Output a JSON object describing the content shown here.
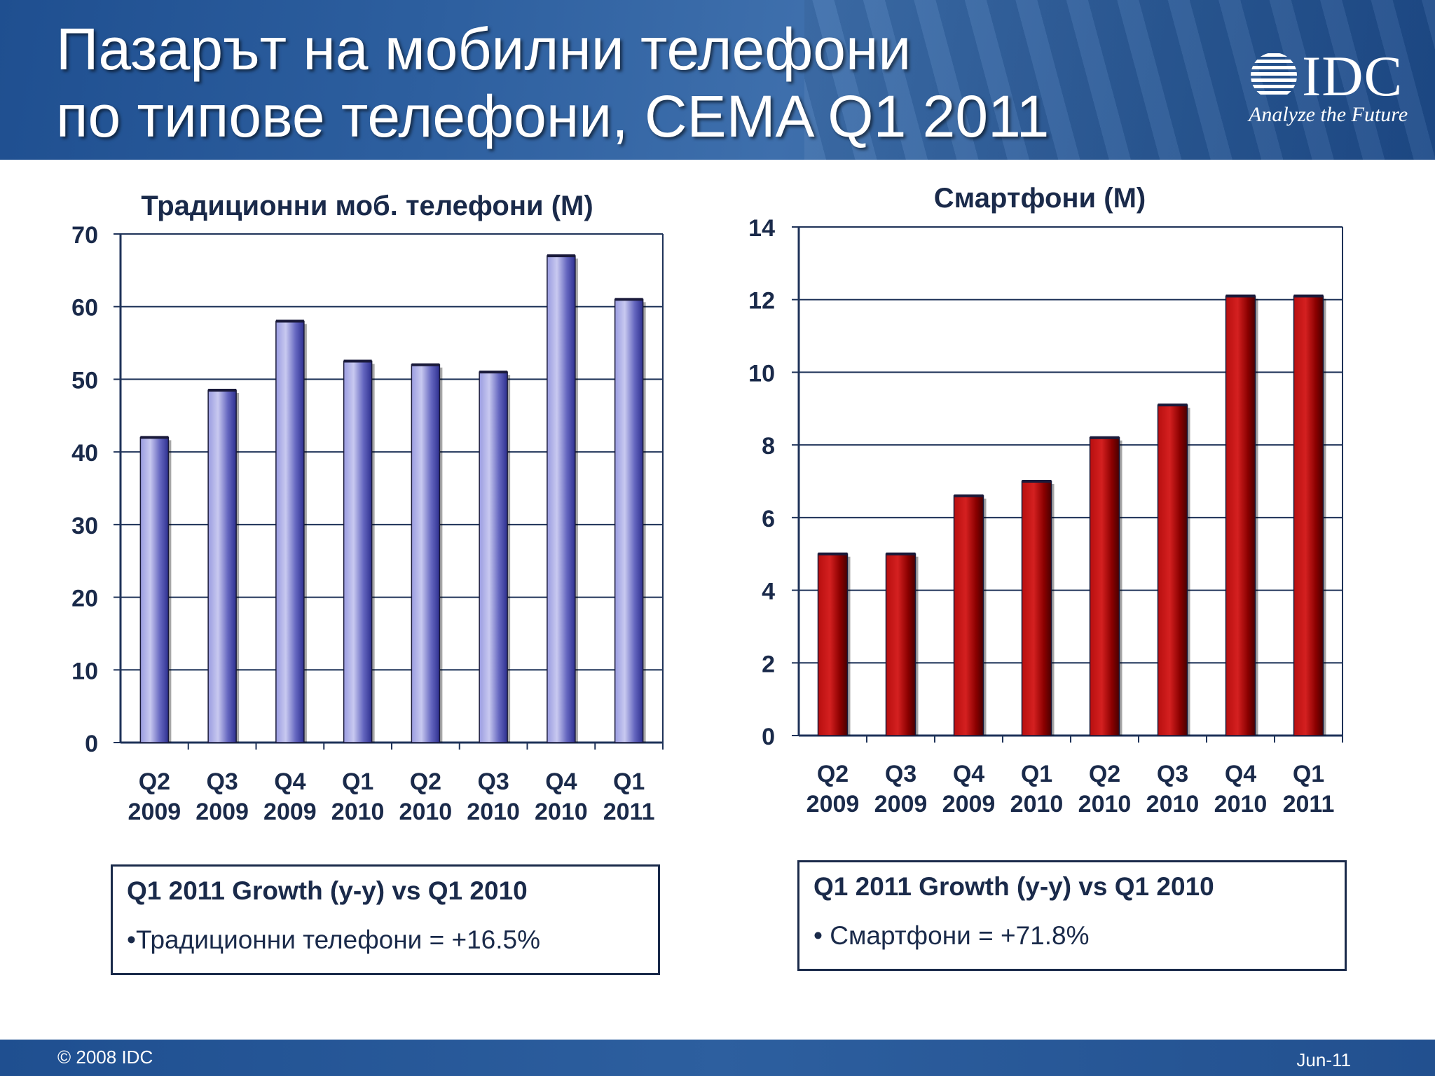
{
  "header": {
    "title_line1": "Пазарът на мобилни телефони",
    "title_line2": "по типове телефони, CEMA Q1 2011",
    "logo_text": "IDC",
    "logo_tagline": "Analyze the Future"
  },
  "chart_data": [
    {
      "type": "bar",
      "title": "Традиционни моб. телефони (M)",
      "xlabel": "",
      "ylabel": "",
      "categories": [
        "Q2 2009",
        "Q3 2009",
        "Q4 2009",
        "Q1 2010",
        "Q2 2010",
        "Q3 2010",
        "Q4 2010",
        "Q1 2011"
      ],
      "values": [
        42,
        48.5,
        58,
        52.5,
        52,
        51,
        67,
        61
      ],
      "ylim": [
        0,
        70
      ],
      "yticks": [
        0,
        10,
        20,
        30,
        40,
        50,
        60,
        70
      ],
      "grid": true,
      "color": "#6a6cc4"
    },
    {
      "type": "bar",
      "title": "Смартфони (M)",
      "xlabel": "",
      "ylabel": "",
      "categories": [
        "Q2 2009",
        "Q3 2009",
        "Q4 2009",
        "Q1 2010",
        "Q2 2010",
        "Q3 2010",
        "Q4 2010",
        "Q1 2011"
      ],
      "values": [
        5,
        5,
        6.6,
        7,
        8.2,
        9.1,
        12.1,
        12.1
      ],
      "ylim": [
        0,
        14
      ],
      "yticks": [
        0,
        2,
        4,
        6,
        8,
        10,
        12,
        14
      ],
      "grid": true,
      "color": "#a00000"
    }
  ],
  "notes": [
    {
      "heading": "Q1 2011 Growth (y-y) vs Q1 2010",
      "item": "•Традиционни телефони = +16.5%"
    },
    {
      "heading": "Q1 2011 Growth (y-y) vs Q1 2010",
      "item": "•  Смартфони = +71.8%"
    }
  ],
  "footer": {
    "copyright": "© 2008 IDC",
    "date": "Jun-11"
  }
}
